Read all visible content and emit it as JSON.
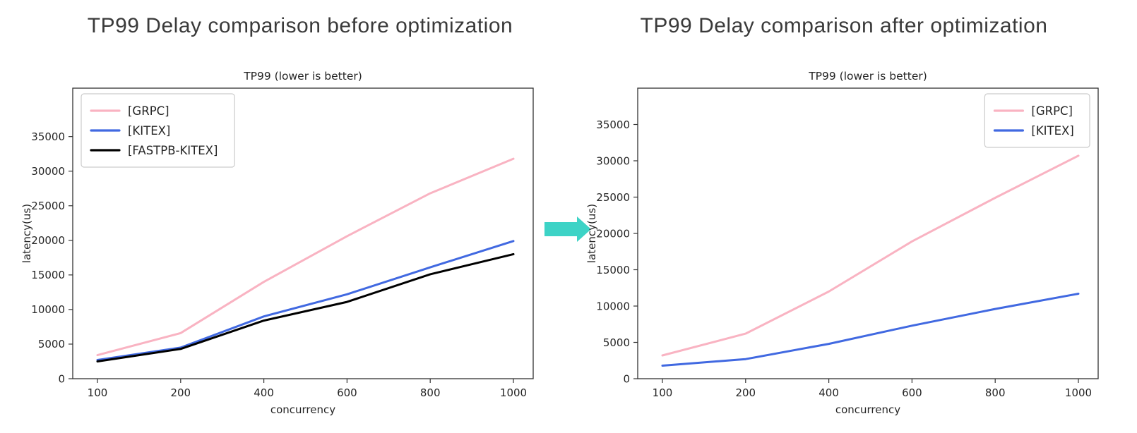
{
  "headers": {
    "before": "TP99 Delay comparison before optimization",
    "after": "TP99 Delay comparison after optimization"
  },
  "arrow": {
    "icon": "right-arrow-icon",
    "color": "#3dd3c6"
  },
  "chart_data": [
    {
      "type": "line",
      "title": "TP99 (lower is better)",
      "xlabel": "concurrency",
      "ylabel": "latency(us)",
      "categories": [
        "100",
        "200",
        "400",
        "600",
        "800",
        "1000"
      ],
      "yticks": [
        0,
        5000,
        10000,
        15000,
        20000,
        25000,
        30000,
        35000
      ],
      "ylim": [
        0,
        42000
      ],
      "grid": false,
      "legend_position": "upper-left",
      "series": [
        {
          "name": "[GRPC]",
          "color": "#f9b3c2",
          "values": [
            3400,
            6600,
            14000,
            20600,
            26800,
            31800
          ]
        },
        {
          "name": "[KITEX]",
          "color": "#4169e1",
          "values": [
            2700,
            4500,
            9000,
            12200,
            16100,
            19900
          ]
        },
        {
          "name": "[FASTPB-KITEX]",
          "color": "#000000",
          "values": [
            2500,
            4300,
            8400,
            11100,
            15100,
            18000
          ]
        }
      ]
    },
    {
      "type": "line",
      "title": "TP99 (lower is better)",
      "xlabel": "concurrency",
      "ylabel": "latency(us)",
      "categories": [
        "100",
        "200",
        "400",
        "600",
        "800",
        "1000"
      ],
      "yticks": [
        0,
        5000,
        10000,
        15000,
        20000,
        25000,
        30000,
        35000
      ],
      "ylim": [
        0,
        40000
      ],
      "grid": false,
      "legend_position": "upper-right",
      "series": [
        {
          "name": "[GRPC]",
          "color": "#f9b3c2",
          "values": [
            3200,
            6200,
            12000,
            18900,
            24900,
            30700
          ]
        },
        {
          "name": "[KITEX]",
          "color": "#4169e1",
          "values": [
            1800,
            2700,
            4800,
            7300,
            9600,
            11700
          ]
        }
      ]
    }
  ]
}
